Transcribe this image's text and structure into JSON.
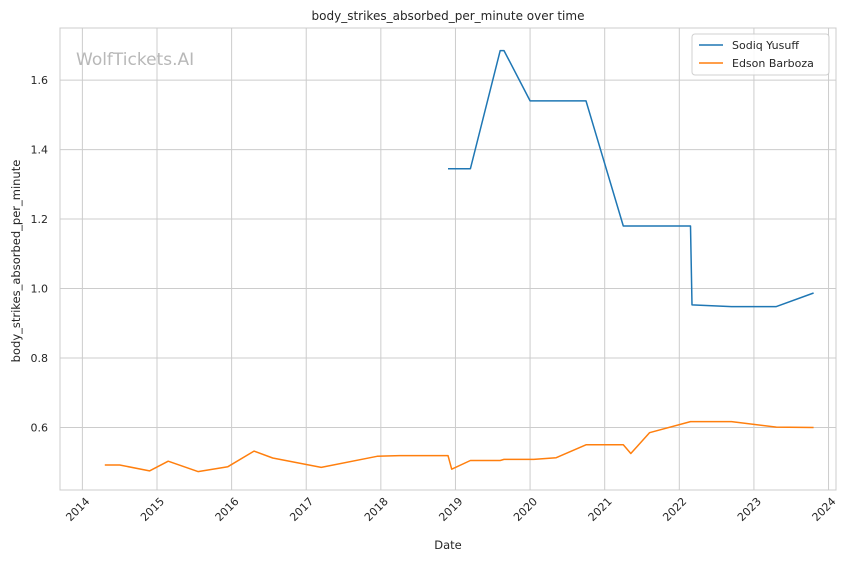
{
  "chart_data": {
    "type": "line",
    "title": "body_strikes_absorbed_per_minute over time",
    "xlabel": "Date",
    "ylabel": "body_strikes_absorbed_per_minute",
    "watermark": "WolfTickets.AI",
    "xlim": [
      2013.7,
      2024.1
    ],
    "ylim": [
      0.42,
      1.75
    ],
    "x_ticks": [
      2014,
      2015,
      2016,
      2017,
      2018,
      2019,
      2020,
      2021,
      2022,
      2023,
      2024
    ],
    "y_ticks": [
      0.6,
      0.8,
      1.0,
      1.2,
      1.4,
      1.6
    ],
    "y_tick_labels": [
      "0.6",
      "0.8",
      "1.0",
      "1.2",
      "1.4",
      "1.6"
    ],
    "grid": true,
    "legend_placement": "top-right",
    "series": [
      {
        "name": "Sodiq Yusuff",
        "color": "#1f77b4",
        "x": [
          2018.9,
          2019.2,
          2019.6,
          2019.65,
          2020.0,
          2020.75,
          2021.25,
          2022.15,
          2022.17,
          2022.7,
          2023.3,
          2023.8
        ],
        "y": [
          1.345,
          1.345,
          1.685,
          1.685,
          1.54,
          1.54,
          1.18,
          1.18,
          0.953,
          0.948,
          0.948,
          0.987
        ]
      },
      {
        "name": "Edson Barboza",
        "color": "#ff7f0e",
        "x": [
          2014.3,
          2014.5,
          2014.9,
          2015.15,
          2015.55,
          2015.95,
          2016.3,
          2016.55,
          2017.2,
          2017.95,
          2018.25,
          2018.9,
          2018.95,
          2019.2,
          2019.6,
          2019.65,
          2020.05,
          2020.35,
          2020.75,
          2021.25,
          2021.35,
          2021.6,
          2022.15,
          2022.7,
          2023.3,
          2023.8
        ],
        "y": [
          0.492,
          0.492,
          0.475,
          0.503,
          0.473,
          0.487,
          0.532,
          0.512,
          0.485,
          0.517,
          0.519,
          0.519,
          0.48,
          0.505,
          0.505,
          0.508,
          0.508,
          0.513,
          0.55,
          0.55,
          0.525,
          0.585,
          0.617,
          0.617,
          0.601,
          0.6
        ]
      }
    ]
  }
}
